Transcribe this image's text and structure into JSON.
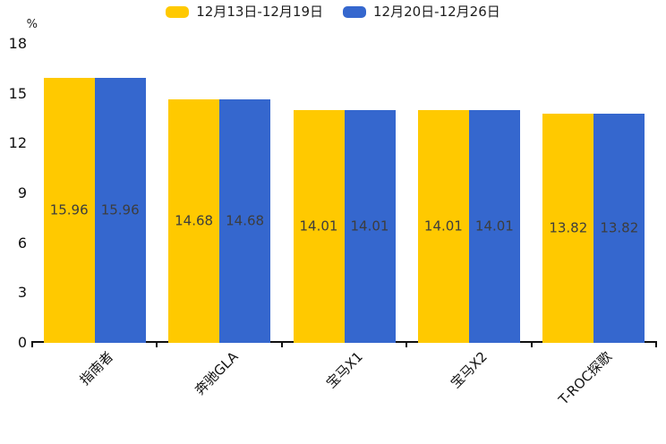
{
  "chart_data": {
    "type": "bar",
    "title": "",
    "categories": [
      "指南者",
      "奔驰GLA",
      "宝马X1",
      "宝马X2",
      "T-ROC探歌"
    ],
    "series": [
      {
        "name": "12月13日-12月19日",
        "color": "#FFC900",
        "values": [
          15.96,
          14.68,
          14.01,
          14.01,
          13.82
        ]
      },
      {
        "name": "12月20日-12月26日",
        "color": "#3567CE",
        "values": [
          15.96,
          14.68,
          14.01,
          14.01,
          13.82
        ]
      }
    ],
    "xlabel": "",
    "ylabel": "%",
    "yticks": [
      0,
      3,
      6,
      9,
      12,
      15,
      18
    ],
    "ylim": [
      0,
      18
    ],
    "legend_position": "top",
    "grid": false,
    "value_labels_decimals": 2
  }
}
